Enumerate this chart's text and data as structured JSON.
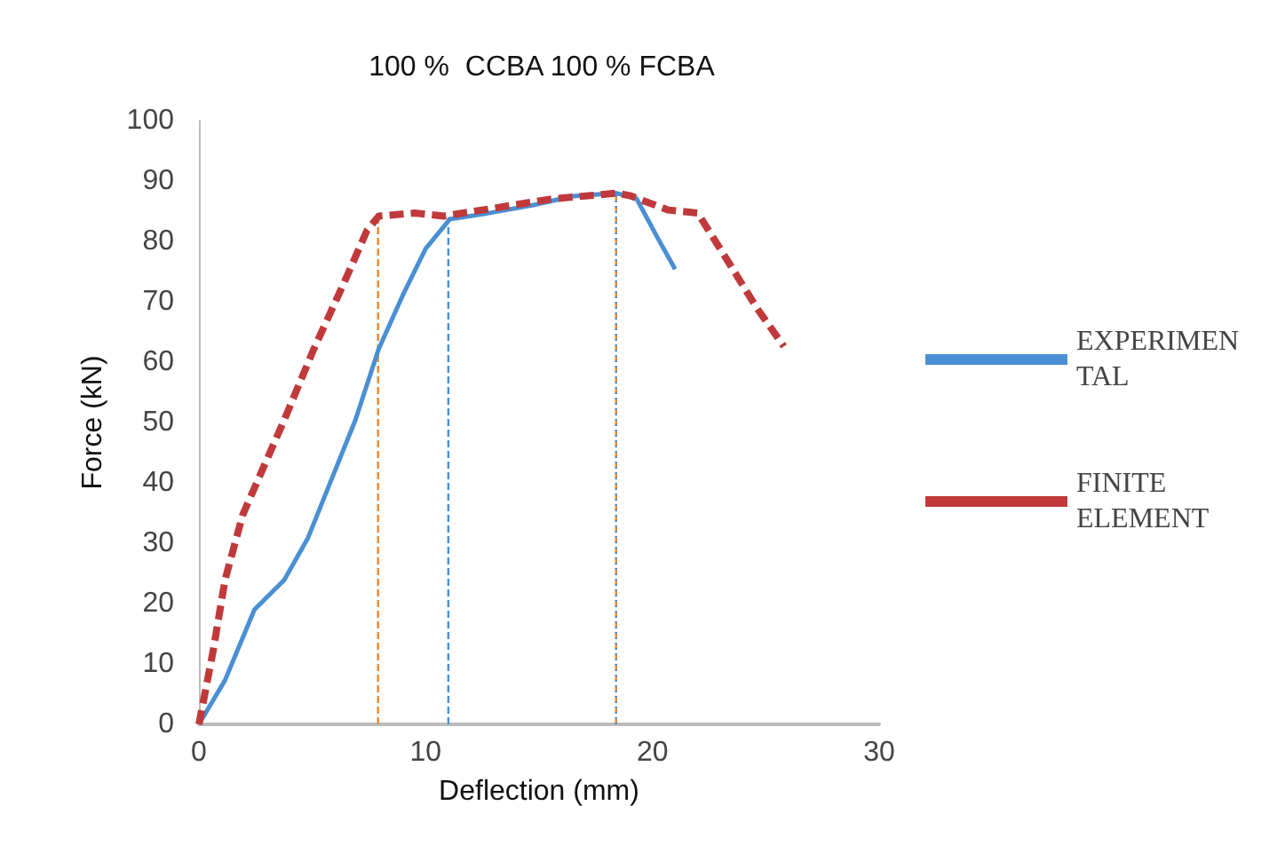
{
  "chart_data": {
    "type": "line",
    "title": "100 %  CCBA 100 % FCBA",
    "xlabel": "Deflection (mm)",
    "ylabel": "Force (kN)",
    "xlim": [
      0,
      30
    ],
    "xticks": [
      0,
      10,
      20,
      30
    ],
    "ylim": [
      0,
      100
    ],
    "yticks": [
      0,
      10,
      20,
      30,
      40,
      50,
      60,
      70,
      80,
      90,
      100
    ],
    "grid": false,
    "legend": "right",
    "marker": "none",
    "series": [
      {
        "name": "EXPERIMENTAL",
        "color": "#4a8fd4",
        "line_style": "solid",
        "x": [
          0,
          1.15,
          2.45,
          3.76,
          4.8,
          5.85,
          6.9,
          7.93,
          8.98,
          10.0,
          11.07,
          12.5,
          14.7,
          16.5,
          18.4,
          19.3,
          20.2,
          21.0
        ],
        "values": [
          0,
          7.3,
          19,
          23.9,
          30.8,
          40.6,
          50.4,
          62.2,
          71,
          78.8,
          83.7,
          84.5,
          86,
          87.5,
          88,
          87.1,
          80.8,
          75.4
        ]
      },
      {
        "name": "FINITE ELEMENT",
        "color": "#c0393b",
        "line_style": "dashed",
        "x": [
          0,
          0.63,
          1.15,
          1.93,
          3.76,
          5.07,
          6.37,
          7.41,
          7.93,
          9.5,
          10.8,
          13,
          15.5,
          18.4,
          19.0,
          20.7,
          22.0,
          23.3,
          24.6,
          25.8
        ],
        "values": [
          0,
          12.2,
          23.9,
          34.7,
          50.4,
          62.2,
          72.9,
          81.8,
          84.2,
          84.7,
          84.2,
          85.5,
          87,
          88,
          87.6,
          85.2,
          84.7,
          76.9,
          69,
          62.6
        ]
      },
      {
        "color": "#e8892c",
        "line_style": "dashed",
        "x": [
          7.9,
          7.9
        ],
        "values": [
          0,
          84.2
        ]
      },
      {
        "color": "#4a8fd4",
        "line_style": "dashed",
        "x": [
          11.0,
          11.0
        ],
        "values": [
          0,
          84
        ]
      },
      {
        "color": "#e8892c",
        "line_style": "dashed",
        "x": [
          18.4,
          18.4
        ],
        "values": [
          0,
          88
        ]
      },
      {
        "color": "#4a8fd4",
        "line_style": "dotted",
        "x": [
          18.4,
          18.4
        ],
        "values": [
          0,
          88
        ]
      }
    ]
  }
}
